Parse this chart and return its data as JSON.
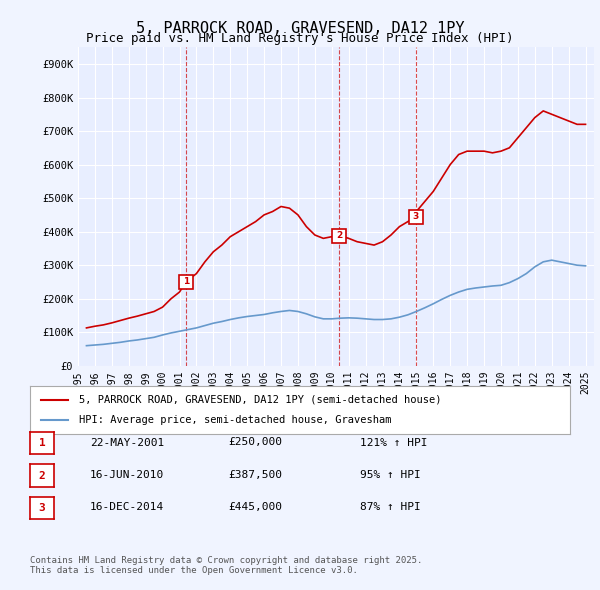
{
  "title": "5, PARROCK ROAD, GRAVESEND, DA12 1PY",
  "subtitle": "Price paid vs. HM Land Registry's House Price Index (HPI)",
  "title_fontsize": 11,
  "subtitle_fontsize": 9,
  "bg_color": "#f0f4ff",
  "plot_bg_color": "#e8eeff",
  "grid_color": "#ffffff",
  "red_line_color": "#cc0000",
  "blue_line_color": "#6699cc",
  "sale_marker_color": "#cc0000",
  "ylim": [
    0,
    950000
  ],
  "yticks": [
    0,
    100000,
    200000,
    300000,
    400000,
    500000,
    600000,
    700000,
    800000,
    900000
  ],
  "ytick_labels": [
    "£0",
    "£100K",
    "£200K",
    "£300K",
    "£400K",
    "£500K",
    "£600K",
    "£700K",
    "£800K",
    "£900K"
  ],
  "sales": [
    {
      "date_num": 2001.38,
      "price": 250000,
      "label": "1"
    },
    {
      "date_num": 2010.45,
      "price": 387500,
      "label": "2"
    },
    {
      "date_num": 2014.96,
      "price": 445000,
      "label": "3"
    }
  ],
  "sale_vline_color": "#cc0000",
  "legend_items": [
    "5, PARROCK ROAD, GRAVESEND, DA12 1PY (semi-detached house)",
    "HPI: Average price, semi-detached house, Gravesham"
  ],
  "table_data": [
    {
      "num": "1",
      "date": "22-MAY-2001",
      "price": "£250,000",
      "hpi": "121% ↑ HPI"
    },
    {
      "num": "2",
      "date": "16-JUN-2010",
      "price": "£387,500",
      "hpi": "95% ↑ HPI"
    },
    {
      "num": "3",
      "date": "16-DEC-2014",
      "price": "£445,000",
      "hpi": "87% ↑ HPI"
    }
  ],
  "footer": "Contains HM Land Registry data © Crown copyright and database right 2025.\nThis data is licensed under the Open Government Licence v3.0.",
  "hpi_red_x": [
    1995.5,
    1996.0,
    1996.5,
    1997.0,
    1997.5,
    1998.0,
    1998.5,
    1999.0,
    1999.5,
    2000.0,
    2000.5,
    2001.0,
    2001.38,
    2001.5,
    2002.0,
    2002.5,
    2003.0,
    2003.5,
    2004.0,
    2004.5,
    2005.0,
    2005.5,
    2006.0,
    2006.5,
    2007.0,
    2007.5,
    2008.0,
    2008.5,
    2009.0,
    2009.5,
    2010.0,
    2010.45,
    2010.5,
    2011.0,
    2011.5,
    2012.0,
    2012.5,
    2013.0,
    2013.5,
    2014.0,
    2014.5,
    2014.96,
    2015.0,
    2015.5,
    2016.0,
    2016.5,
    2017.0,
    2017.5,
    2018.0,
    2018.5,
    2019.0,
    2019.5,
    2020.0,
    2020.5,
    2021.0,
    2021.5,
    2022.0,
    2022.5,
    2023.0,
    2023.5,
    2024.0,
    2024.5,
    2025.0
  ],
  "hpi_red_y": [
    113000,
    118000,
    122000,
    128000,
    135000,
    142000,
    148000,
    155000,
    162000,
    175000,
    200000,
    220000,
    250000,
    255000,
    275000,
    310000,
    340000,
    360000,
    385000,
    400000,
    415000,
    430000,
    450000,
    460000,
    475000,
    470000,
    450000,
    415000,
    390000,
    380000,
    385000,
    387500,
    388000,
    380000,
    370000,
    365000,
    360000,
    370000,
    390000,
    415000,
    430000,
    445000,
    460000,
    490000,
    520000,
    560000,
    600000,
    630000,
    640000,
    640000,
    640000,
    635000,
    640000,
    650000,
    680000,
    710000,
    740000,
    760000,
    750000,
    740000,
    730000,
    720000,
    720000
  ],
  "hpi_blue_x": [
    1995.5,
    1996.0,
    1996.5,
    1997.0,
    1997.5,
    1998.0,
    1998.5,
    1999.0,
    1999.5,
    2000.0,
    2000.5,
    2001.0,
    2001.5,
    2002.0,
    2002.5,
    2003.0,
    2003.5,
    2004.0,
    2004.5,
    2005.0,
    2005.5,
    2006.0,
    2006.5,
    2007.0,
    2007.5,
    2008.0,
    2008.5,
    2009.0,
    2009.5,
    2010.0,
    2010.5,
    2011.0,
    2011.5,
    2012.0,
    2012.5,
    2013.0,
    2013.5,
    2014.0,
    2014.5,
    2015.0,
    2015.5,
    2016.0,
    2016.5,
    2017.0,
    2017.5,
    2018.0,
    2018.5,
    2019.0,
    2019.5,
    2020.0,
    2020.5,
    2021.0,
    2021.5,
    2022.0,
    2022.5,
    2023.0,
    2023.5,
    2024.0,
    2024.5,
    2025.0
  ],
  "hpi_blue_y": [
    60000,
    62000,
    64000,
    67000,
    70000,
    74000,
    77000,
    81000,
    85000,
    92000,
    98000,
    103000,
    108000,
    113000,
    120000,
    127000,
    132000,
    138000,
    143000,
    147000,
    150000,
    153000,
    158000,
    162000,
    165000,
    162000,
    155000,
    146000,
    140000,
    140000,
    142000,
    143000,
    142000,
    140000,
    138000,
    138000,
    140000,
    145000,
    152000,
    162000,
    173000,
    185000,
    198000,
    210000,
    220000,
    228000,
    232000,
    235000,
    238000,
    240000,
    248000,
    260000,
    275000,
    295000,
    310000,
    315000,
    310000,
    305000,
    300000,
    298000
  ],
  "xlim": [
    1995.0,
    2025.5
  ],
  "xtick_years": [
    1995,
    1996,
    1997,
    1998,
    1999,
    2000,
    2001,
    2002,
    2003,
    2004,
    2005,
    2006,
    2007,
    2008,
    2009,
    2010,
    2011,
    2012,
    2013,
    2014,
    2015,
    2016,
    2017,
    2018,
    2019,
    2020,
    2021,
    2022,
    2023,
    2024,
    2025
  ]
}
